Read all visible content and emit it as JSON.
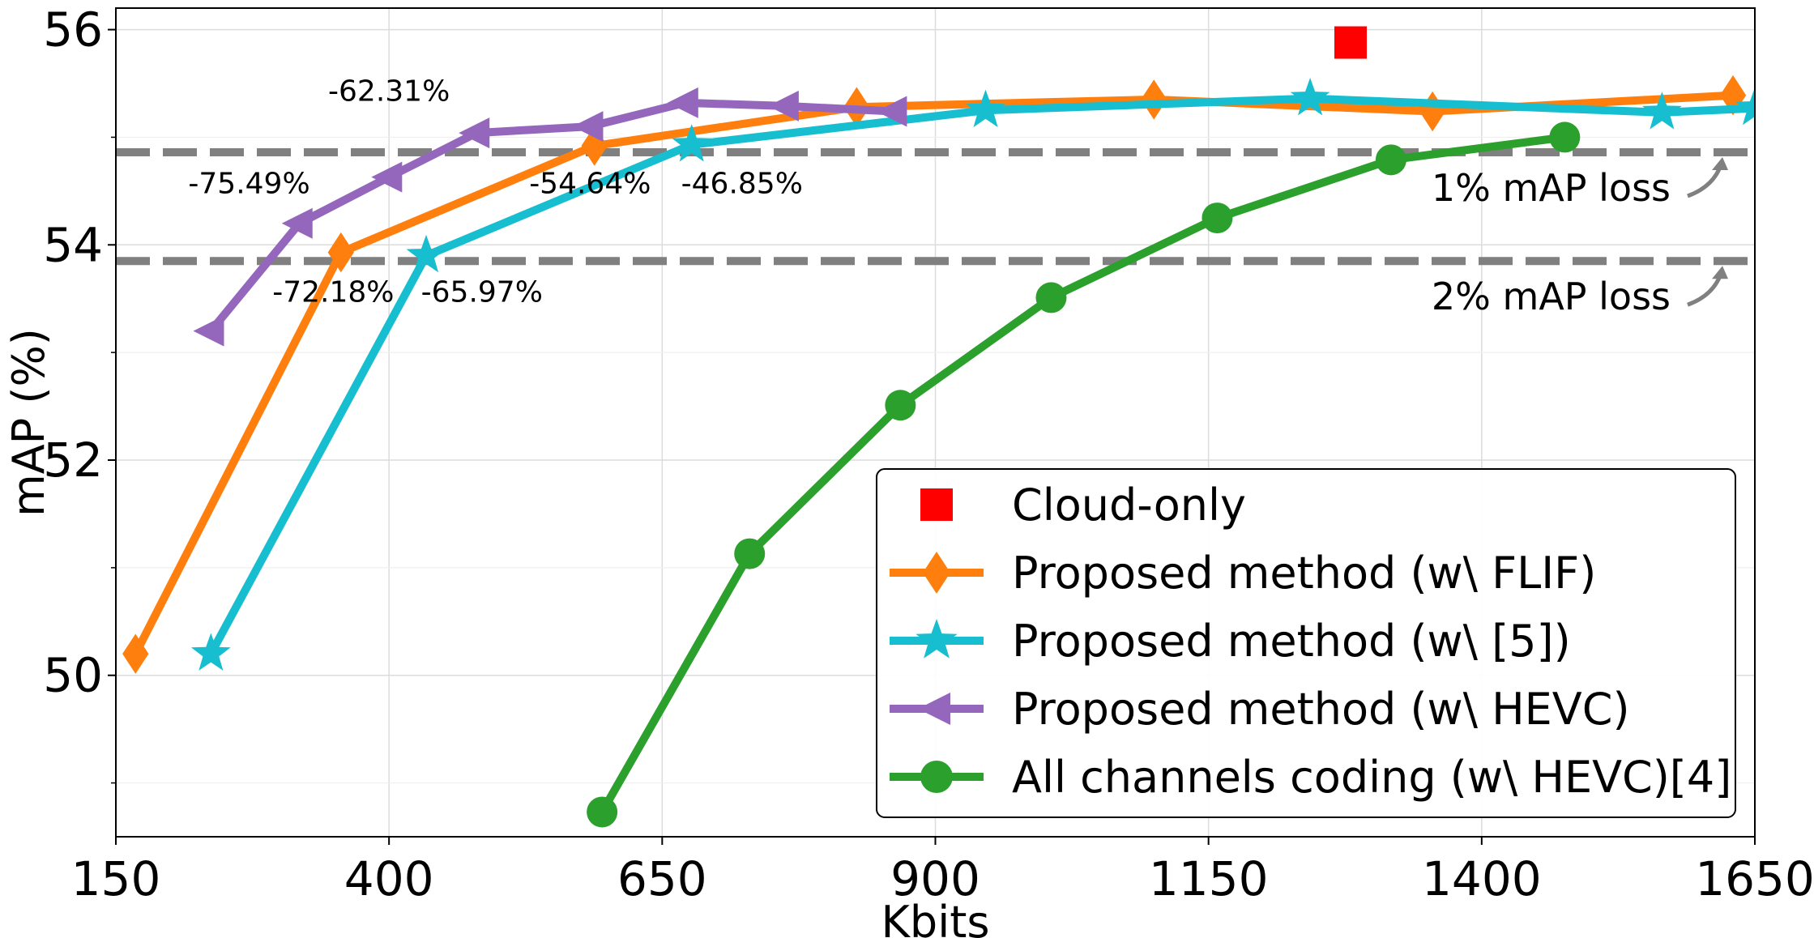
{
  "chart_data": {
    "type": "line",
    "title": "",
    "xlabel": "Kbits",
    "ylabel": "mAP (%)",
    "xlim": [
      150,
      1650
    ],
    "ylim": [
      48.5,
      56.2
    ],
    "xticks": [
      150,
      400,
      650,
      900,
      1150,
      1400,
      1650
    ],
    "yticks": [
      50,
      52,
      54,
      56
    ],
    "y_minor_ticks": [
      49,
      51,
      53,
      55
    ],
    "grid": true,
    "legend_position": "lower-right",
    "reference_lines": [
      {
        "y": 54.86,
        "label": "1% mAP loss",
        "style": "dashed",
        "color": "#808080"
      },
      {
        "y": 53.85,
        "label": "2% mAP loss",
        "style": "dashed",
        "color": "#808080"
      }
    ],
    "series": [
      {
        "name": "Cloud-only",
        "color": "#ff0000",
        "marker": "square",
        "line": false,
        "x": [
          1280
        ],
        "y": [
          55.88
        ]
      },
      {
        "name": "Proposed method (w\\ FLIF)",
        "color": "#ff7f0e",
        "marker": "diamond",
        "line": true,
        "x": [
          168,
          356,
          588,
          828,
          1100,
          1355,
          1630
        ],
        "y": [
          50.2,
          53.93,
          54.92,
          55.28,
          55.35,
          55.24,
          55.39
        ]
      },
      {
        "name": "Proposed method (w\\ [5])",
        "color": "#17becf",
        "marker": "star",
        "line": true,
        "x": [
          237,
          434,
          677,
          946,
          1243,
          1565,
          1650
        ],
        "y": [
          50.2,
          53.9,
          54.93,
          55.25,
          55.36,
          55.23,
          55.27
        ]
      },
      {
        "name": "Proposed method (w\\ HEVC)",
        "color": "#9467bd",
        "marker": "triangle-left",
        "line": true,
        "x": [
          237,
          318,
          400,
          480,
          584,
          671,
          763,
          862
        ],
        "y": [
          53.2,
          54.2,
          54.63,
          55.04,
          55.1,
          55.32,
          55.29,
          55.24
        ]
      },
      {
        "name": "All channels coding (w\\ HEVC)[4]",
        "color": "#2ca02c",
        "marker": "circle",
        "line": true,
        "x": [
          595,
          730,
          868,
          1006,
          1158,
          1317,
          1476
        ],
        "y": [
          48.73,
          51.13,
          52.51,
          53.51,
          54.25,
          54.79,
          55.0
        ]
      }
    ],
    "annotations": [
      {
        "text": "-62.31%",
        "x": 400,
        "y": 55.34
      },
      {
        "text": "-75.49%",
        "x": 272,
        "y": 54.48
      },
      {
        "text": "-54.64%",
        "x": 584,
        "y": 54.48
      },
      {
        "text": "-46.85%",
        "x": 723,
        "y": 54.48
      },
      {
        "text": "-72.18%",
        "x": 349,
        "y": 53.47
      },
      {
        "text": "-65.97%",
        "x": 485,
        "y": 53.47
      }
    ]
  }
}
